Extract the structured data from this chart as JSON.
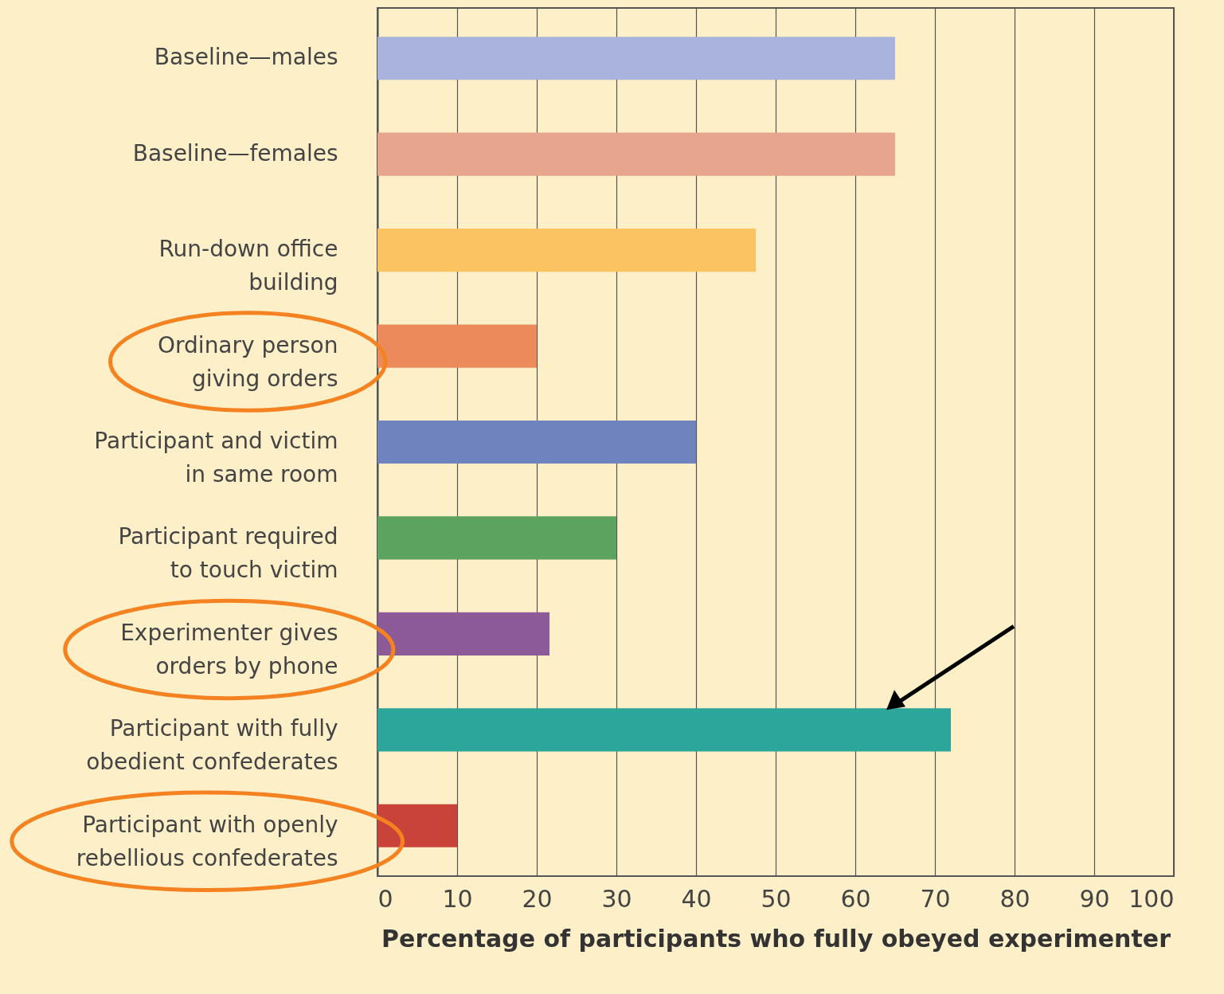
{
  "chart_data": {
    "type": "bar",
    "orientation": "horizontal",
    "xlabel": "Percentage of participants who fully obeyed experimenter",
    "categories": [
      "Baseline—males",
      "Baseline—females",
      "Run-down office\nbuilding",
      "Ordinary person\ngiving orders",
      "Participant and victim\nin same room",
      "Participant required\nto touch victim",
      "Experimenter gives\norders by phone",
      "Participant with fully\nobedient confederates",
      "Participant with openly\nrebellious confederates"
    ],
    "values": [
      65,
      65,
      47.5,
      20,
      40,
      30,
      21.6,
      72,
      10
    ],
    "colors": [
      "#a9b3dc",
      "#e6a58c",
      "#fbc461",
      "#ec8a5b",
      "#6f84bf",
      "#5ba35e",
      "#8c5a97",
      "#2ca59a",
      "#c9433a"
    ],
    "xlim": [
      0,
      100
    ],
    "xticks": [
      0,
      10,
      20,
      30,
      40,
      50,
      60,
      70,
      80,
      90,
      100
    ],
    "grid": "x"
  }
}
